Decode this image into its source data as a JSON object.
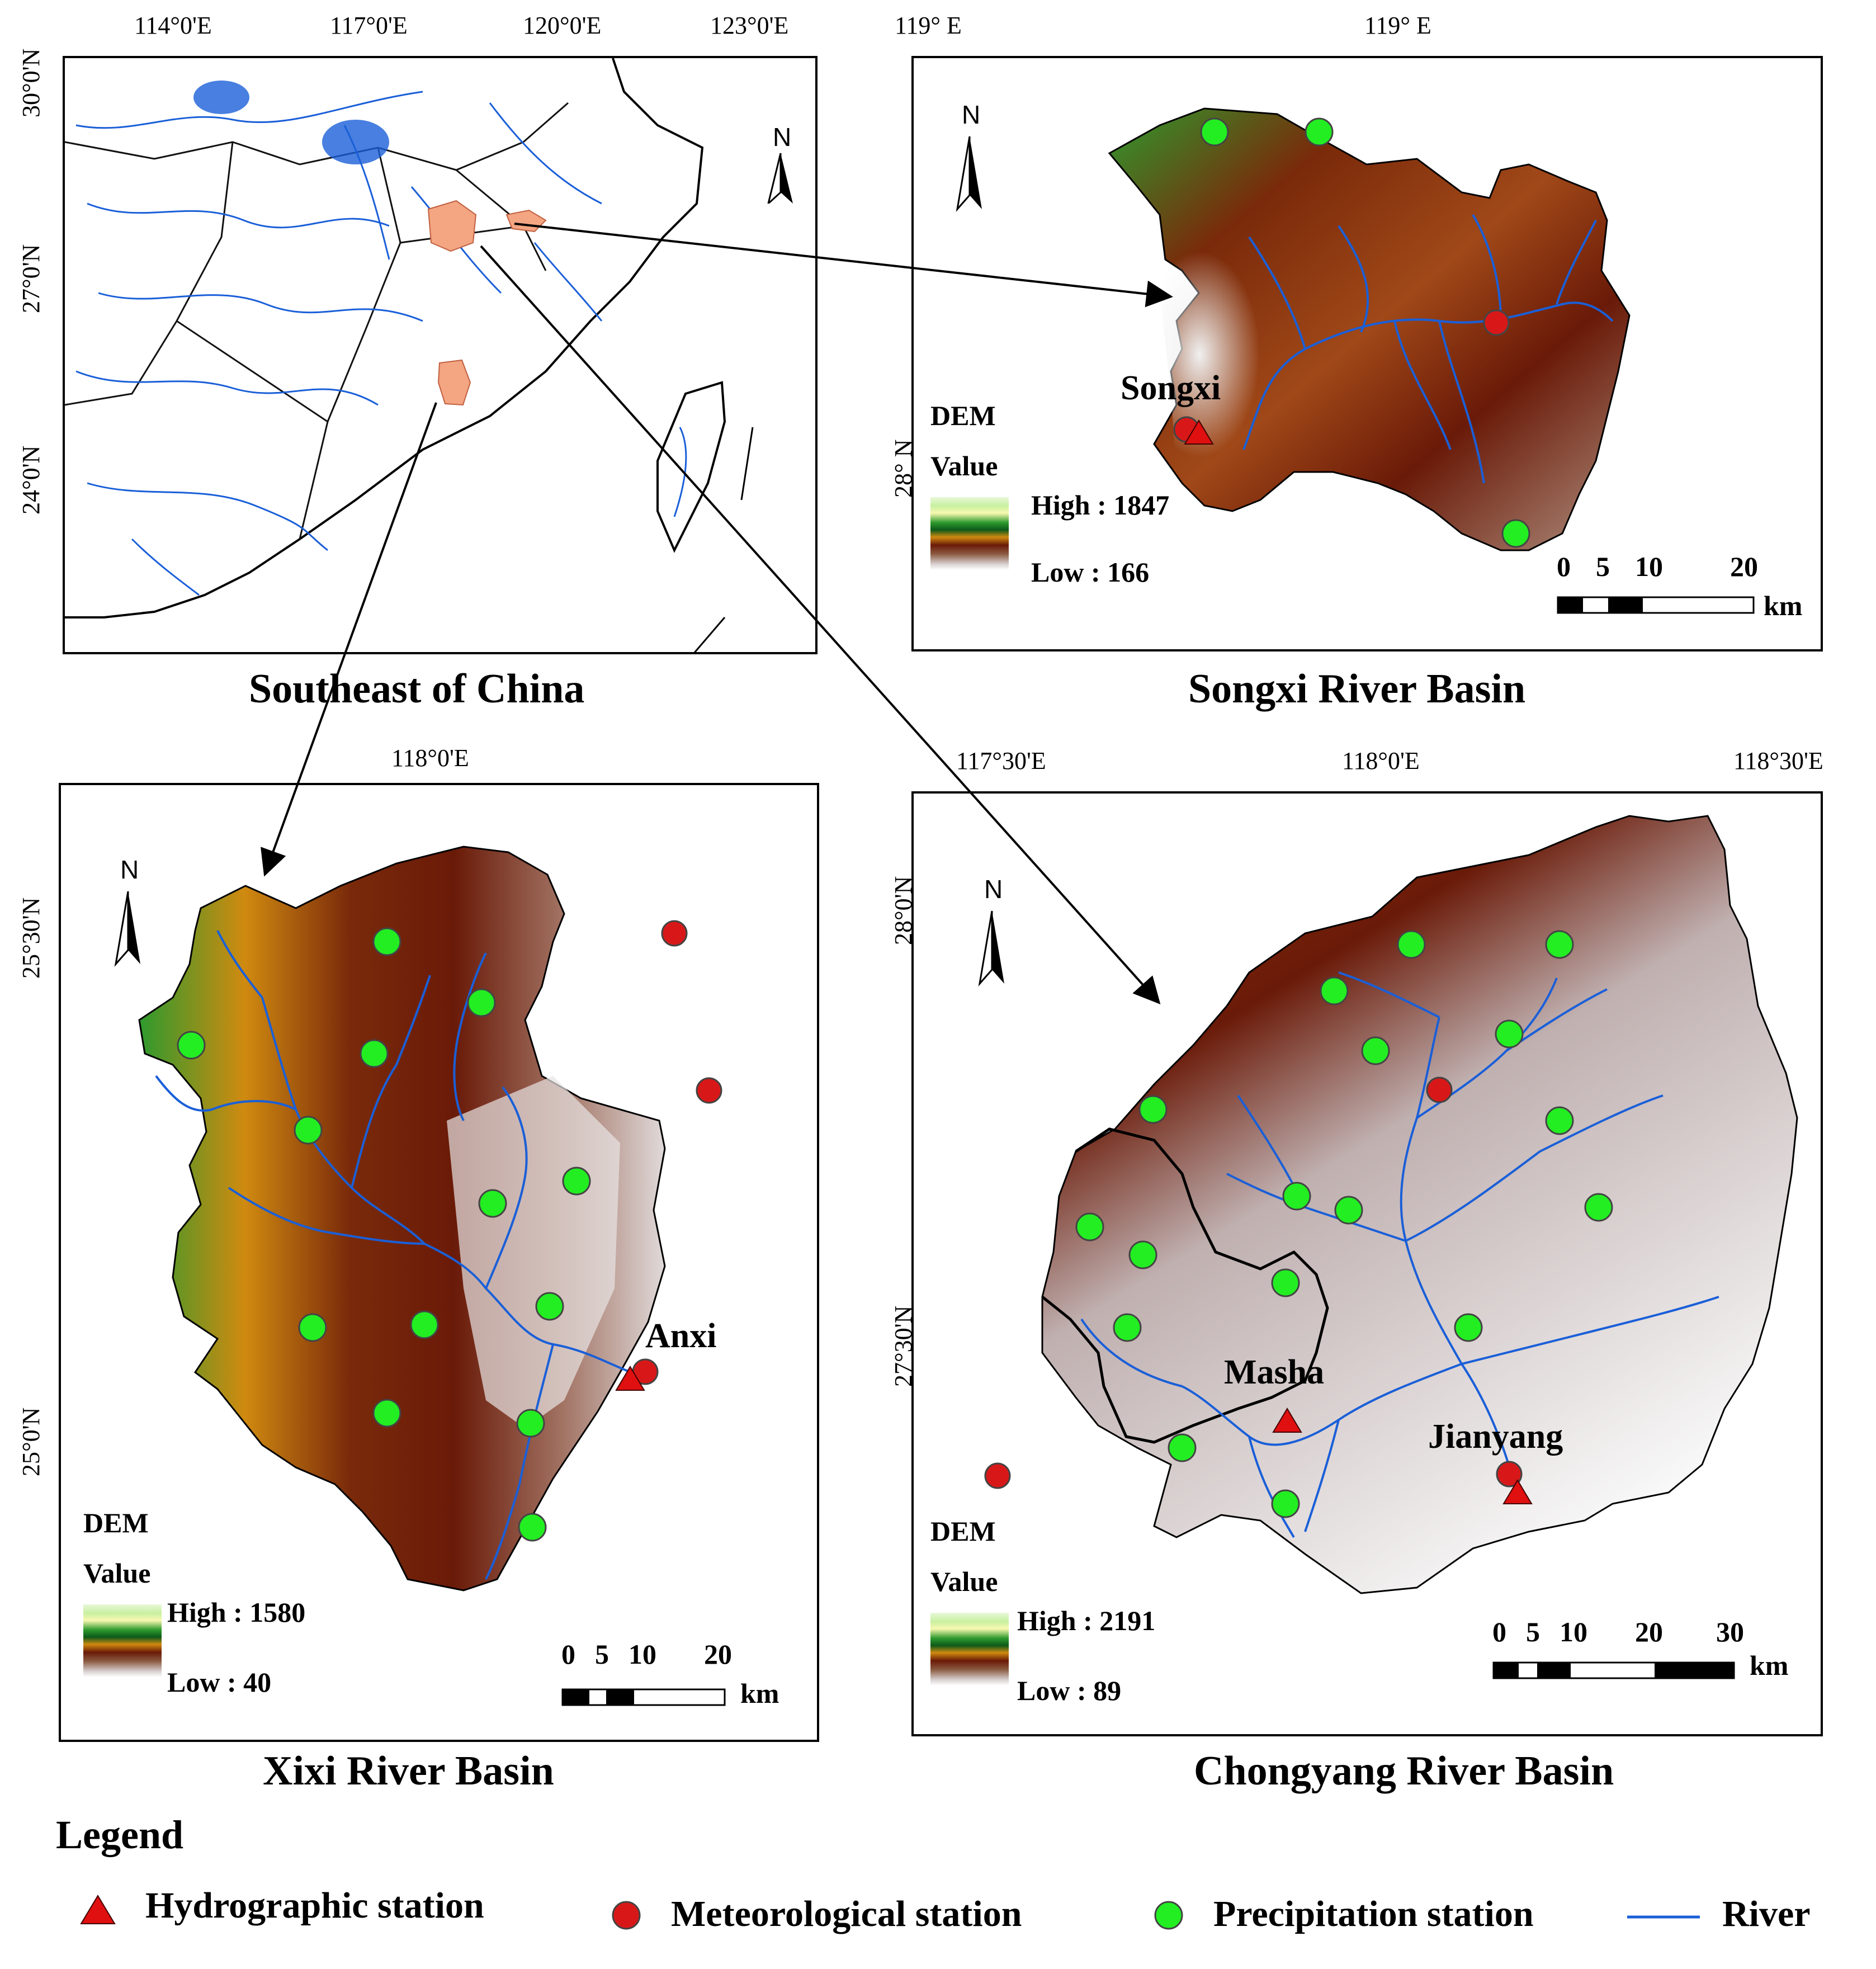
{
  "panels": {
    "southeast": {
      "title": "Southeast of China",
      "top_ticks": [
        "114°0'E",
        "117°0'E",
        "120°0'E",
        "123°0'E"
      ],
      "left_ticks": [
        "30°0'N",
        "27°0'N",
        "24°0'N"
      ]
    },
    "songxi": {
      "title": "Songxi River Basin",
      "top_ticks": [
        "119° E",
        "119° E"
      ],
      "left_ticks": [
        "28° N"
      ],
      "station_label": "Songxi",
      "dem": {
        "label": "DEM",
        "value_label": "Value",
        "high": "High : 1847",
        "low": "Low : 166"
      },
      "scale": {
        "ticks": [
          "0",
          "5",
          "10",
          "20"
        ],
        "unit": "km"
      }
    },
    "xixi": {
      "title": "Xixi River Basin",
      "top_ticks": [
        "118°0'E"
      ],
      "left_ticks": [
        "25°30'N",
        "25°0'N"
      ],
      "station_label": "Anxi",
      "dem": {
        "label": "DEM",
        "value_label": "Value",
        "high": "High : 1580",
        "low": "Low : 40"
      },
      "scale": {
        "ticks": [
          "0",
          "5",
          "10",
          "20"
        ],
        "unit": "km"
      }
    },
    "chongyang": {
      "title": "Chongyang River Basin",
      "top_ticks": [
        "117°30'E",
        "118°0'E",
        "118°30'E"
      ],
      "left_ticks": [
        "28°0'N",
        "27°30'N"
      ],
      "station_labels": [
        "Masha",
        "Jianyang"
      ],
      "dem": {
        "label": "DEM",
        "value_label": "Value",
        "high": "High : 2191",
        "low": "Low : 89"
      },
      "scale": {
        "ticks": [
          "0",
          "5",
          "10",
          "20",
          "30"
        ],
        "unit": "km"
      }
    }
  },
  "north_label": "N",
  "legend": {
    "title": "Legend",
    "items": [
      {
        "label": "Hydrographic station",
        "symbol": "red-triangle"
      },
      {
        "label": "Meteorological station",
        "symbol": "red-circle"
      },
      {
        "label": "Precipitation station",
        "symbol": "green-circle"
      },
      {
        "label": "River",
        "symbol": "blue-line"
      }
    ]
  },
  "colors": {
    "river": "#1a5fd8",
    "hydro": "#e01010",
    "meteo": "#d81818",
    "precip": "#22ee22",
    "basin_highlight": "#f4a582"
  }
}
